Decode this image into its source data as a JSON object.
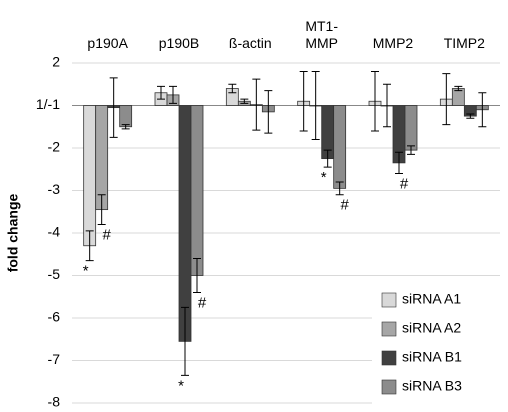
{
  "chart_data": {
    "type": "bar",
    "categories": [
      "p190A",
      "p190B",
      "ß-actin",
      "MT1-\nMMP",
      "MMP2",
      "TIMP2"
    ],
    "y_label": "fold change",
    "ylim": [
      -8,
      2
    ],
    "yticks": [
      2,
      {
        "value": 1,
        "label": "1/-1"
      },
      -2,
      -3,
      -4,
      -5,
      -6,
      -7,
      -8
    ],
    "grid": true,
    "legend": "lower right",
    "series": [
      {
        "name": "siRNA A1",
        "color": "#d9d9d9",
        "values": [
          -4.3,
          1.3,
          1.4,
          1.1,
          1.1,
          1.15
        ],
        "errors": [
          0.35,
          0.15,
          0.1,
          0.7,
          0.7,
          0.6
        ],
        "significance": [
          "*",
          null,
          null,
          null,
          null,
          null
        ]
      },
      {
        "name": "siRNA A2",
        "color": "#a6a6a6",
        "values": [
          -3.45,
          1.25,
          1.1,
          1.0,
          1.0,
          1.4
        ],
        "errors": [
          0.35,
          0.2,
          0.05,
          0.8,
          0.5,
          0.05
        ],
        "significance": [
          "#",
          null,
          null,
          null,
          null,
          null
        ]
      },
      {
        "name": "siRNA B1",
        "color": "#404040",
        "values": [
          -1.05,
          -6.55,
          1.02,
          -2.25,
          -2.35,
          -1.25
        ],
        "errors": [
          0.7,
          0.8,
          0.6,
          0.2,
          0.25,
          0.05
        ],
        "significance": [
          null,
          "*",
          null,
          "*",
          "#",
          null
        ]
      },
      {
        "name": "siRNA B3",
        "color": "#8c8c8c",
        "values": [
          -1.5,
          -5.0,
          -1.15,
          -2.95,
          -2.05,
          -1.1
        ],
        "errors": [
          0.05,
          0.4,
          0.5,
          0.15,
          0.1,
          0.4
        ],
        "significance": [
          null,
          "#",
          null,
          "#",
          null,
          null
        ]
      }
    ]
  }
}
